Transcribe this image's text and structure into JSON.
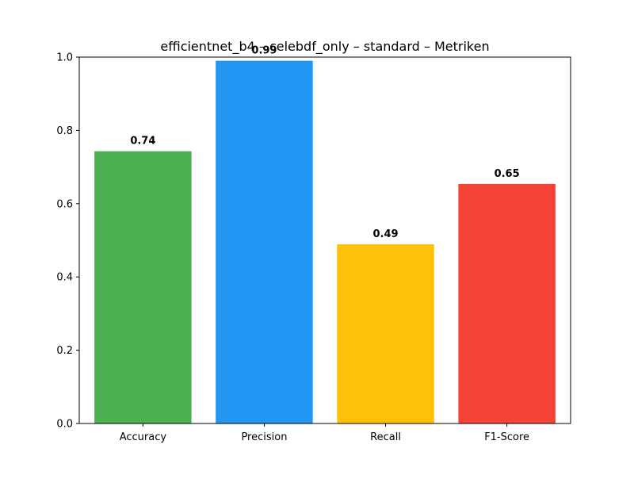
{
  "chart_data": {
    "type": "bar",
    "title": "efficientnet_b4 – celebdf_only – standard – Metriken",
    "xlabel": "",
    "ylabel": "",
    "categories": [
      "Accuracy",
      "Precision",
      "Recall",
      "F1-Score"
    ],
    "values": [
      0.743,
      0.99,
      0.489,
      0.654
    ],
    "value_labels": [
      "0.74",
      "0.99",
      "0.49",
      "0.65"
    ],
    "colors": [
      "#4caf50",
      "#2196f3",
      "#ffc107",
      "#f44336"
    ],
    "ylim": [
      0,
      1.0
    ],
    "yticks": [
      0.0,
      0.2,
      0.4,
      0.6,
      0.8,
      1.0
    ],
    "ytick_labels": [
      "0.0",
      "0.2",
      "0.4",
      "0.6",
      "0.8",
      "1.0"
    ],
    "grid": false,
    "legend": "none"
  }
}
